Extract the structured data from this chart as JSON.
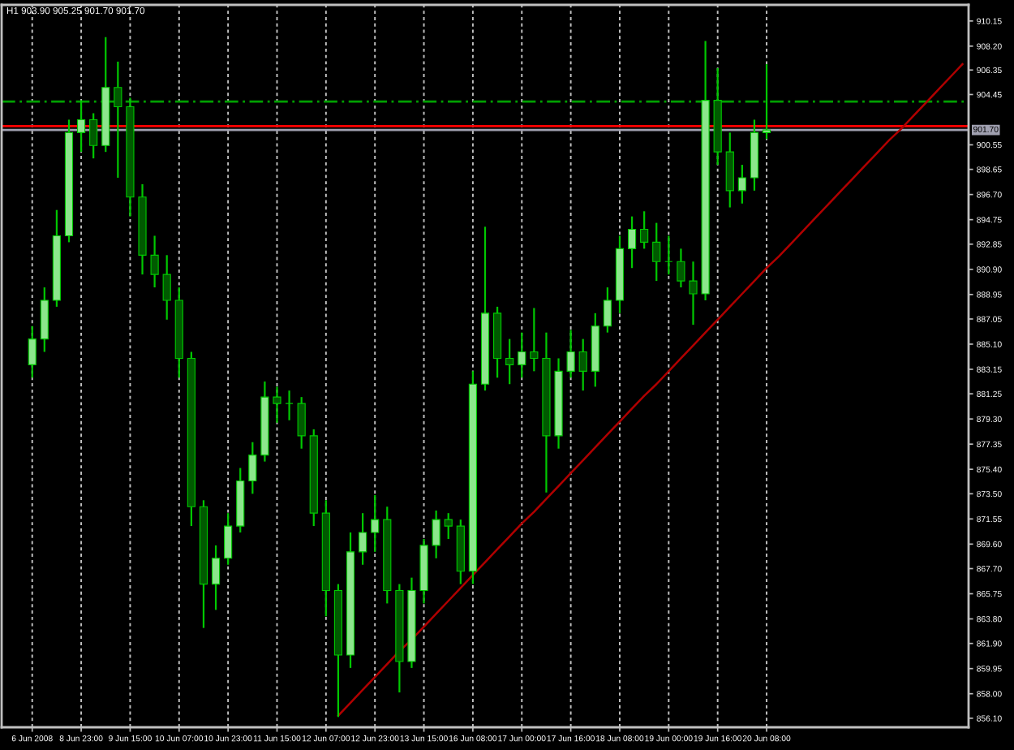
{
  "chart_data": {
    "type": "candlestick",
    "title": "H1 903.90 905.25 901.70 901.70",
    "color": "#00c800",
    "categories": [
      "6 Jun 2008",
      null,
      null,
      null,
      "8 Jun 23:00",
      null,
      null,
      null,
      "9 Jun 15:00",
      null,
      null,
      null,
      "10 Jun 07:00",
      null,
      null,
      null,
      "10 Jun 23:00",
      null,
      null,
      null,
      "11 Jun 15:00",
      null,
      null,
      null,
      "12 Jun 07:00",
      null,
      null,
      null,
      "12 Jun 23:00",
      null,
      null,
      null,
      "13 Jun 15:00",
      null,
      null,
      null,
      "16 Jun 08:00",
      null,
      null,
      null,
      "17 Jun 00:00",
      null,
      null,
      null,
      "17 Jun 16:00",
      null,
      null,
      null,
      "18 Jun 08:00",
      null,
      null,
      null,
      "19 Jun 00:00",
      null,
      null,
      null,
      "19 Jun 16:00",
      null,
      null,
      null,
      "20 Jun 08:00",
      null,
      null,
      null,
      null,
      null,
      null,
      null,
      null,
      null,
      null,
      null,
      null,
      null,
      null,
      null,
      null
    ],
    "ohlc": [
      [
        883.5,
        886.5,
        882.5,
        885.5
      ],
      [
        885.5,
        889.5,
        884.5,
        888.5
      ],
      [
        888.5,
        895.5,
        888,
        893.5
      ],
      [
        893.5,
        902.5,
        893,
        901.5
      ],
      [
        901.5,
        904,
        900,
        902.5
      ],
      [
        902.5,
        903,
        899.5,
        900.5
      ],
      [
        900.5,
        908.9,
        900,
        905
      ],
      [
        905,
        907,
        898,
        903.5
      ],
      [
        903.5,
        904.2,
        895,
        896.5
      ],
      [
        896.5,
        897.5,
        890.5,
        892
      ],
      [
        892,
        893.5,
        889.5,
        890.5
      ],
      [
        890.5,
        892,
        887,
        888.5
      ],
      [
        888.5,
        889.5,
        882.5,
        884
      ],
      [
        884,
        884.5,
        871,
        872.5
      ],
      [
        872.5,
        873,
        863.1,
        866.5
      ],
      [
        866.5,
        869.5,
        864.5,
        868.5
      ],
      [
        868.5,
        872,
        868,
        871
      ],
      [
        871,
        875.5,
        870.5,
        874.5
      ],
      [
        874.5,
        877.5,
        873.5,
        876.5
      ],
      [
        876.5,
        882.2,
        876,
        881
      ],
      [
        881,
        881.8,
        879,
        880.5
      ],
      [
        880.5,
        881.5,
        879.2,
        880.5
      ],
      [
        880.5,
        881,
        877,
        878
      ],
      [
        878,
        878.5,
        871,
        872
      ],
      [
        872,
        873,
        864,
        866
      ],
      [
        866,
        866.5,
        856.2,
        861
      ],
      [
        861,
        870.5,
        860,
        869
      ],
      [
        869,
        872,
        868,
        870.5
      ],
      [
        870.5,
        873.4,
        869,
        871.5
      ],
      [
        871.5,
        872.5,
        865,
        866
      ],
      [
        866,
        866.5,
        858.1,
        860.5
      ],
      [
        860.5,
        867,
        860,
        866
      ],
      [
        866,
        870,
        865,
        869.5
      ],
      [
        869.5,
        872.2,
        868.5,
        871.5
      ],
      [
        871.5,
        872,
        870,
        871
      ],
      [
        871,
        871.5,
        866.5,
        867.5
      ],
      [
        867.5,
        883,
        866.5,
        882
      ],
      [
        882,
        894.2,
        881.5,
        887.5
      ],
      [
        887.5,
        888,
        882.5,
        884
      ],
      [
        884,
        885.5,
        882,
        883.5
      ],
      [
        883.5,
        886,
        882.5,
        884.5
      ],
      [
        884.5,
        887.9,
        883,
        884
      ],
      [
        884,
        886,
        873.6,
        878
      ],
      [
        878,
        884,
        877,
        883
      ],
      [
        883,
        886.2,
        882.5,
        884.5
      ],
      [
        884.5,
        885.5,
        881.5,
        883
      ],
      [
        883,
        887.5,
        881.8,
        886.5
      ],
      [
        886.5,
        889.5,
        886,
        888.5
      ],
      [
        888.5,
        893.5,
        887.5,
        892.5
      ],
      [
        892.5,
        895,
        891,
        894
      ],
      [
        894,
        895.4,
        892.5,
        893
      ],
      [
        893,
        894.5,
        890,
        891.5
      ],
      [
        891.5,
        893.5,
        890.5,
        891.5
      ],
      [
        891.5,
        892.5,
        889.5,
        890
      ],
      [
        890,
        891.5,
        886.6,
        889
      ],
      [
        889,
        908.6,
        888.5,
        904
      ],
      [
        904,
        906.5,
        899,
        900
      ],
      [
        900,
        901.5,
        895.7,
        897
      ],
      [
        897,
        899,
        896,
        898
      ],
      [
        898,
        902.5,
        897,
        901.5
      ],
      [
        901.5,
        906.8,
        901,
        901.7
      ],
      null,
      null,
      null,
      null,
      null,
      null,
      null,
      null,
      null,
      null,
      null,
      null,
      null,
      null,
      null,
      null
    ],
    "series": [
      {
        "type": "line",
        "color": "#b00000",
        "values": [
          null,
          null,
          null,
          null,
          null,
          null,
          null,
          null,
          null,
          null,
          null,
          null,
          null,
          null,
          null,
          null,
          null,
          null,
          null,
          null,
          null,
          null,
          null,
          null,
          null,
          856.3,
          857.3,
          858.3,
          859.3,
          860.3,
          861.3,
          862.2,
          863.2,
          864.2,
          865.2,
          866.2,
          867.2,
          868.2,
          869.2,
          870.2,
          871.2,
          872.1,
          873.1,
          874.1,
          875.1,
          876.1,
          877.1,
          878.1,
          879.1,
          880.1,
          881.1,
          882.0,
          883.0,
          884.0,
          885.0,
          886.0,
          887.0,
          888.0,
          889.0,
          890.0,
          891.0,
          891.9,
          892.9,
          893.9,
          894.9,
          895.9,
          896.9,
          897.9,
          898.9,
          899.9,
          900.9,
          901.8,
          902.8,
          903.8,
          904.8,
          905.8,
          906.8
        ]
      }
    ],
    "ylim": [
      855.4,
      911.4
    ],
    "yticks": [
      910.15,
      {
        "value": 908.2,
        "label": "908.20"
      },
      906.35,
      904.45,
      900.55,
      898.65,
      {
        "value": 896.7,
        "label": "896.70"
      },
      894.75,
      892.85,
      {
        "value": 890.9,
        "label": "890.90"
      },
      888.95,
      887.05,
      {
        "value": 885.1,
        "label": "885.10"
      },
      883.15,
      881.25,
      {
        "value": 879.3,
        "label": "879.30"
      },
      877.35,
      {
        "value": 875.4,
        "label": "875.40"
      },
      {
        "value": 873.5,
        "label": "873.50"
      },
      871.55,
      {
        "value": 869.6,
        "label": "869.60"
      },
      {
        "value": 867.7,
        "label": "867.70"
      },
      865.75,
      {
        "value": 863.8,
        "label": "863.80"
      },
      {
        "value": 861.9,
        "label": "861.90"
      },
      859.95,
      {
        "value": 858.0,
        "label": "858.00"
      },
      {
        "value": 856.1,
        "label": "856.10"
      }
    ],
    "grid": "x",
    "ref_lines": [
      {
        "axis": "y",
        "value": 903.9,
        "color": "#00a000",
        "line_style": "dashed"
      },
      {
        "axis": "y",
        "value": 902.0,
        "color": "#ff0000",
        "line_style": "solid"
      },
      {
        "axis": "y",
        "value": 901.7,
        "color": "#a0a0b0",
        "line_style": "solid",
        "label": "901.70"
      }
    ]
  }
}
